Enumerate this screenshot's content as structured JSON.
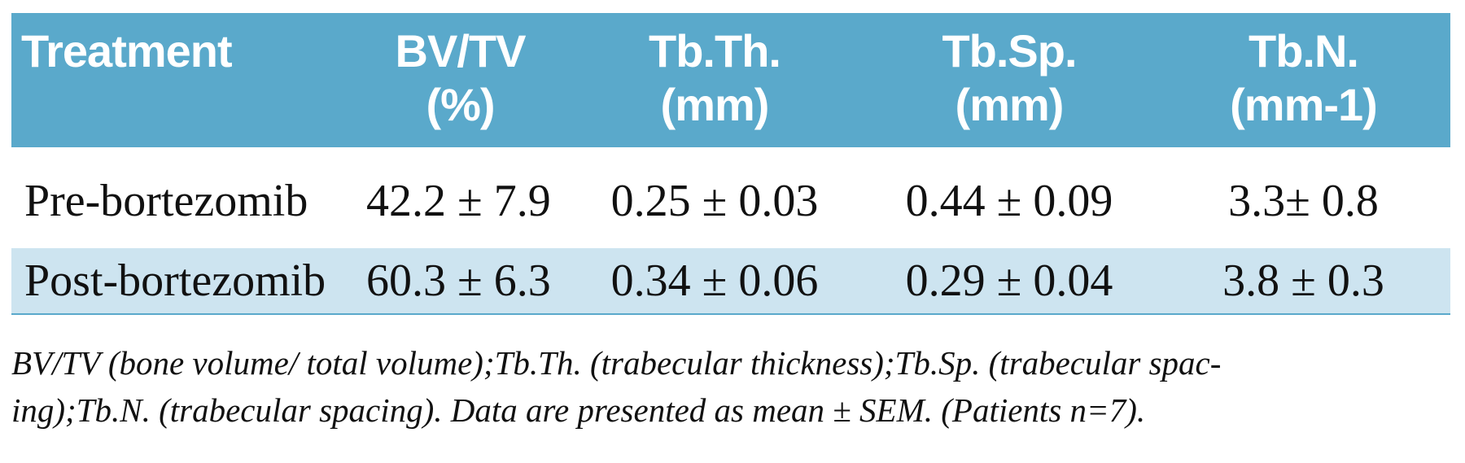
{
  "table": {
    "columns": [
      {
        "line1": "Treatment",
        "line2": ""
      },
      {
        "line1": "BV/TV",
        "line2": "(%)"
      },
      {
        "line1": "Tb.Th.",
        "line2": "(mm)"
      },
      {
        "line1": "Tb.Sp.",
        "line2": "(mm)"
      },
      {
        "line1": "Tb.N.",
        "line2": "(mm-1)"
      }
    ],
    "rows": [
      [
        "Pre-bortezomib",
        "42.2 ± 7.9",
        "0.25 ± 0.03",
        "0.44 ± 0.09",
        "3.3± 0.8"
      ],
      [
        "Post-bortezomib",
        "60.3 ± 6.3",
        "0.34 ± 0.06",
        "0.29 ± 0.04",
        "3.8 ± 0.3"
      ]
    ],
    "footnote_line1": "BV/TV (bone volume/ total volume);Tb.Th. (trabecular thickness);Tb.Sp. (trabecular spac-",
    "footnote_line2": "ing);Tb.N. (trabecular spacing). Data are presented as mean ± SEM.  (Patients n=7).",
    "colors": {
      "header_bg": "#5aa9cb",
      "alt_row_bg": "#cde4f0"
    }
  }
}
